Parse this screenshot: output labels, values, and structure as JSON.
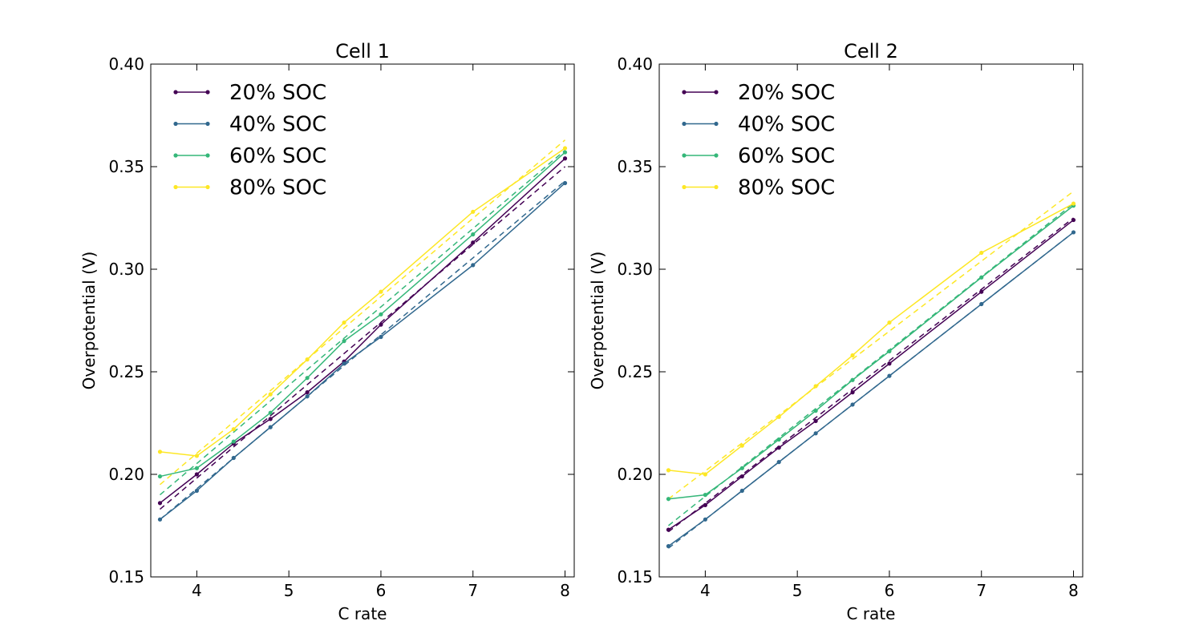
{
  "chart_data": [
    {
      "type": "line",
      "title": "Cell 1",
      "xlabel": "C rate",
      "ylabel": "Overpotential (V)",
      "xlim": [
        3.5,
        8.1
      ],
      "ylim": [
        0.15,
        0.4
      ],
      "xticks": [
        4,
        5,
        6,
        7,
        8
      ],
      "yticks": [
        0.15,
        0.2,
        0.25,
        0.3,
        0.35,
        0.4
      ],
      "xtick_labels": [
        "4",
        "5",
        "6",
        "7",
        "8"
      ],
      "ytick_labels": [
        "0.15",
        "0.20",
        "0.25",
        "0.30",
        "0.35",
        "0.40"
      ],
      "legend_position": "top-left",
      "grid": false,
      "x": [
        3.6,
        4.0,
        4.4,
        4.8,
        5.2,
        5.6,
        6.0,
        7.0,
        8.0
      ],
      "series": [
        {
          "name": "20% SOC",
          "color": "#440154",
          "values": [
            0.186,
            0.2,
            0.215,
            0.227,
            0.24,
            0.255,
            0.273,
            0.313,
            0.354
          ],
          "fit": [
            0.183,
            0.35
          ]
        },
        {
          "name": "40% SOC",
          "color": "#31688e",
          "values": [
            0.178,
            0.192,
            0.208,
            0.223,
            0.238,
            0.254,
            0.267,
            0.302,
            0.342
          ],
          "fit": [
            0.178,
            0.343
          ]
        },
        {
          "name": "60% SOC",
          "color": "#35b779",
          "values": [
            0.199,
            0.203,
            0.216,
            0.23,
            0.247,
            0.265,
            0.278,
            0.317,
            0.357
          ],
          "fit": [
            0.19,
            0.358
          ]
        },
        {
          "name": "80% SOC",
          "color": "#fde725",
          "values": [
            0.211,
            0.209,
            0.222,
            0.239,
            0.256,
            0.274,
            0.289,
            0.328,
            0.359
          ],
          "fit": [
            0.195,
            0.363
          ]
        }
      ]
    },
    {
      "type": "line",
      "title": "Cell 2",
      "xlabel": "C rate",
      "ylabel": "Overpotential (V)",
      "xlim": [
        3.5,
        8.1
      ],
      "ylim": [
        0.15,
        0.4
      ],
      "xticks": [
        4,
        5,
        6,
        7,
        8
      ],
      "yticks": [
        0.15,
        0.2,
        0.25,
        0.3,
        0.35,
        0.4
      ],
      "xtick_labels": [
        "4",
        "5",
        "6",
        "7",
        "8"
      ],
      "ytick_labels": [
        "0.15",
        "0.20",
        "0.25",
        "0.30",
        "0.35",
        "0.40"
      ],
      "legend_position": "top-left",
      "grid": false,
      "x": [
        3.6,
        4.0,
        4.4,
        4.8,
        5.2,
        5.6,
        6.0,
        7.0,
        8.0
      ],
      "series": [
        {
          "name": "20% SOC",
          "color": "#440154",
          "values": [
            0.173,
            0.185,
            0.199,
            0.213,
            0.226,
            0.24,
            0.254,
            0.289,
            0.324
          ],
          "fit": [
            0.172,
            0.325
          ]
        },
        {
          "name": "40% SOC",
          "color": "#31688e",
          "values": [
            0.165,
            0.178,
            0.192,
            0.206,
            0.22,
            0.234,
            0.248,
            0.283,
            0.318
          ],
          "fit": [
            0.164,
            0.318
          ]
        },
        {
          "name": "60% SOC",
          "color": "#35b779",
          "values": [
            0.188,
            0.19,
            0.203,
            0.217,
            0.231,
            0.246,
            0.26,
            0.296,
            0.331
          ],
          "fit": [
            0.175,
            0.332
          ]
        },
        {
          "name": "80% SOC",
          "color": "#fde725",
          "values": [
            0.202,
            0.2,
            0.214,
            0.228,
            0.243,
            0.258,
            0.274,
            0.308,
            0.332
          ],
          "fit": [
            0.188,
            0.338
          ]
        }
      ]
    }
  ]
}
